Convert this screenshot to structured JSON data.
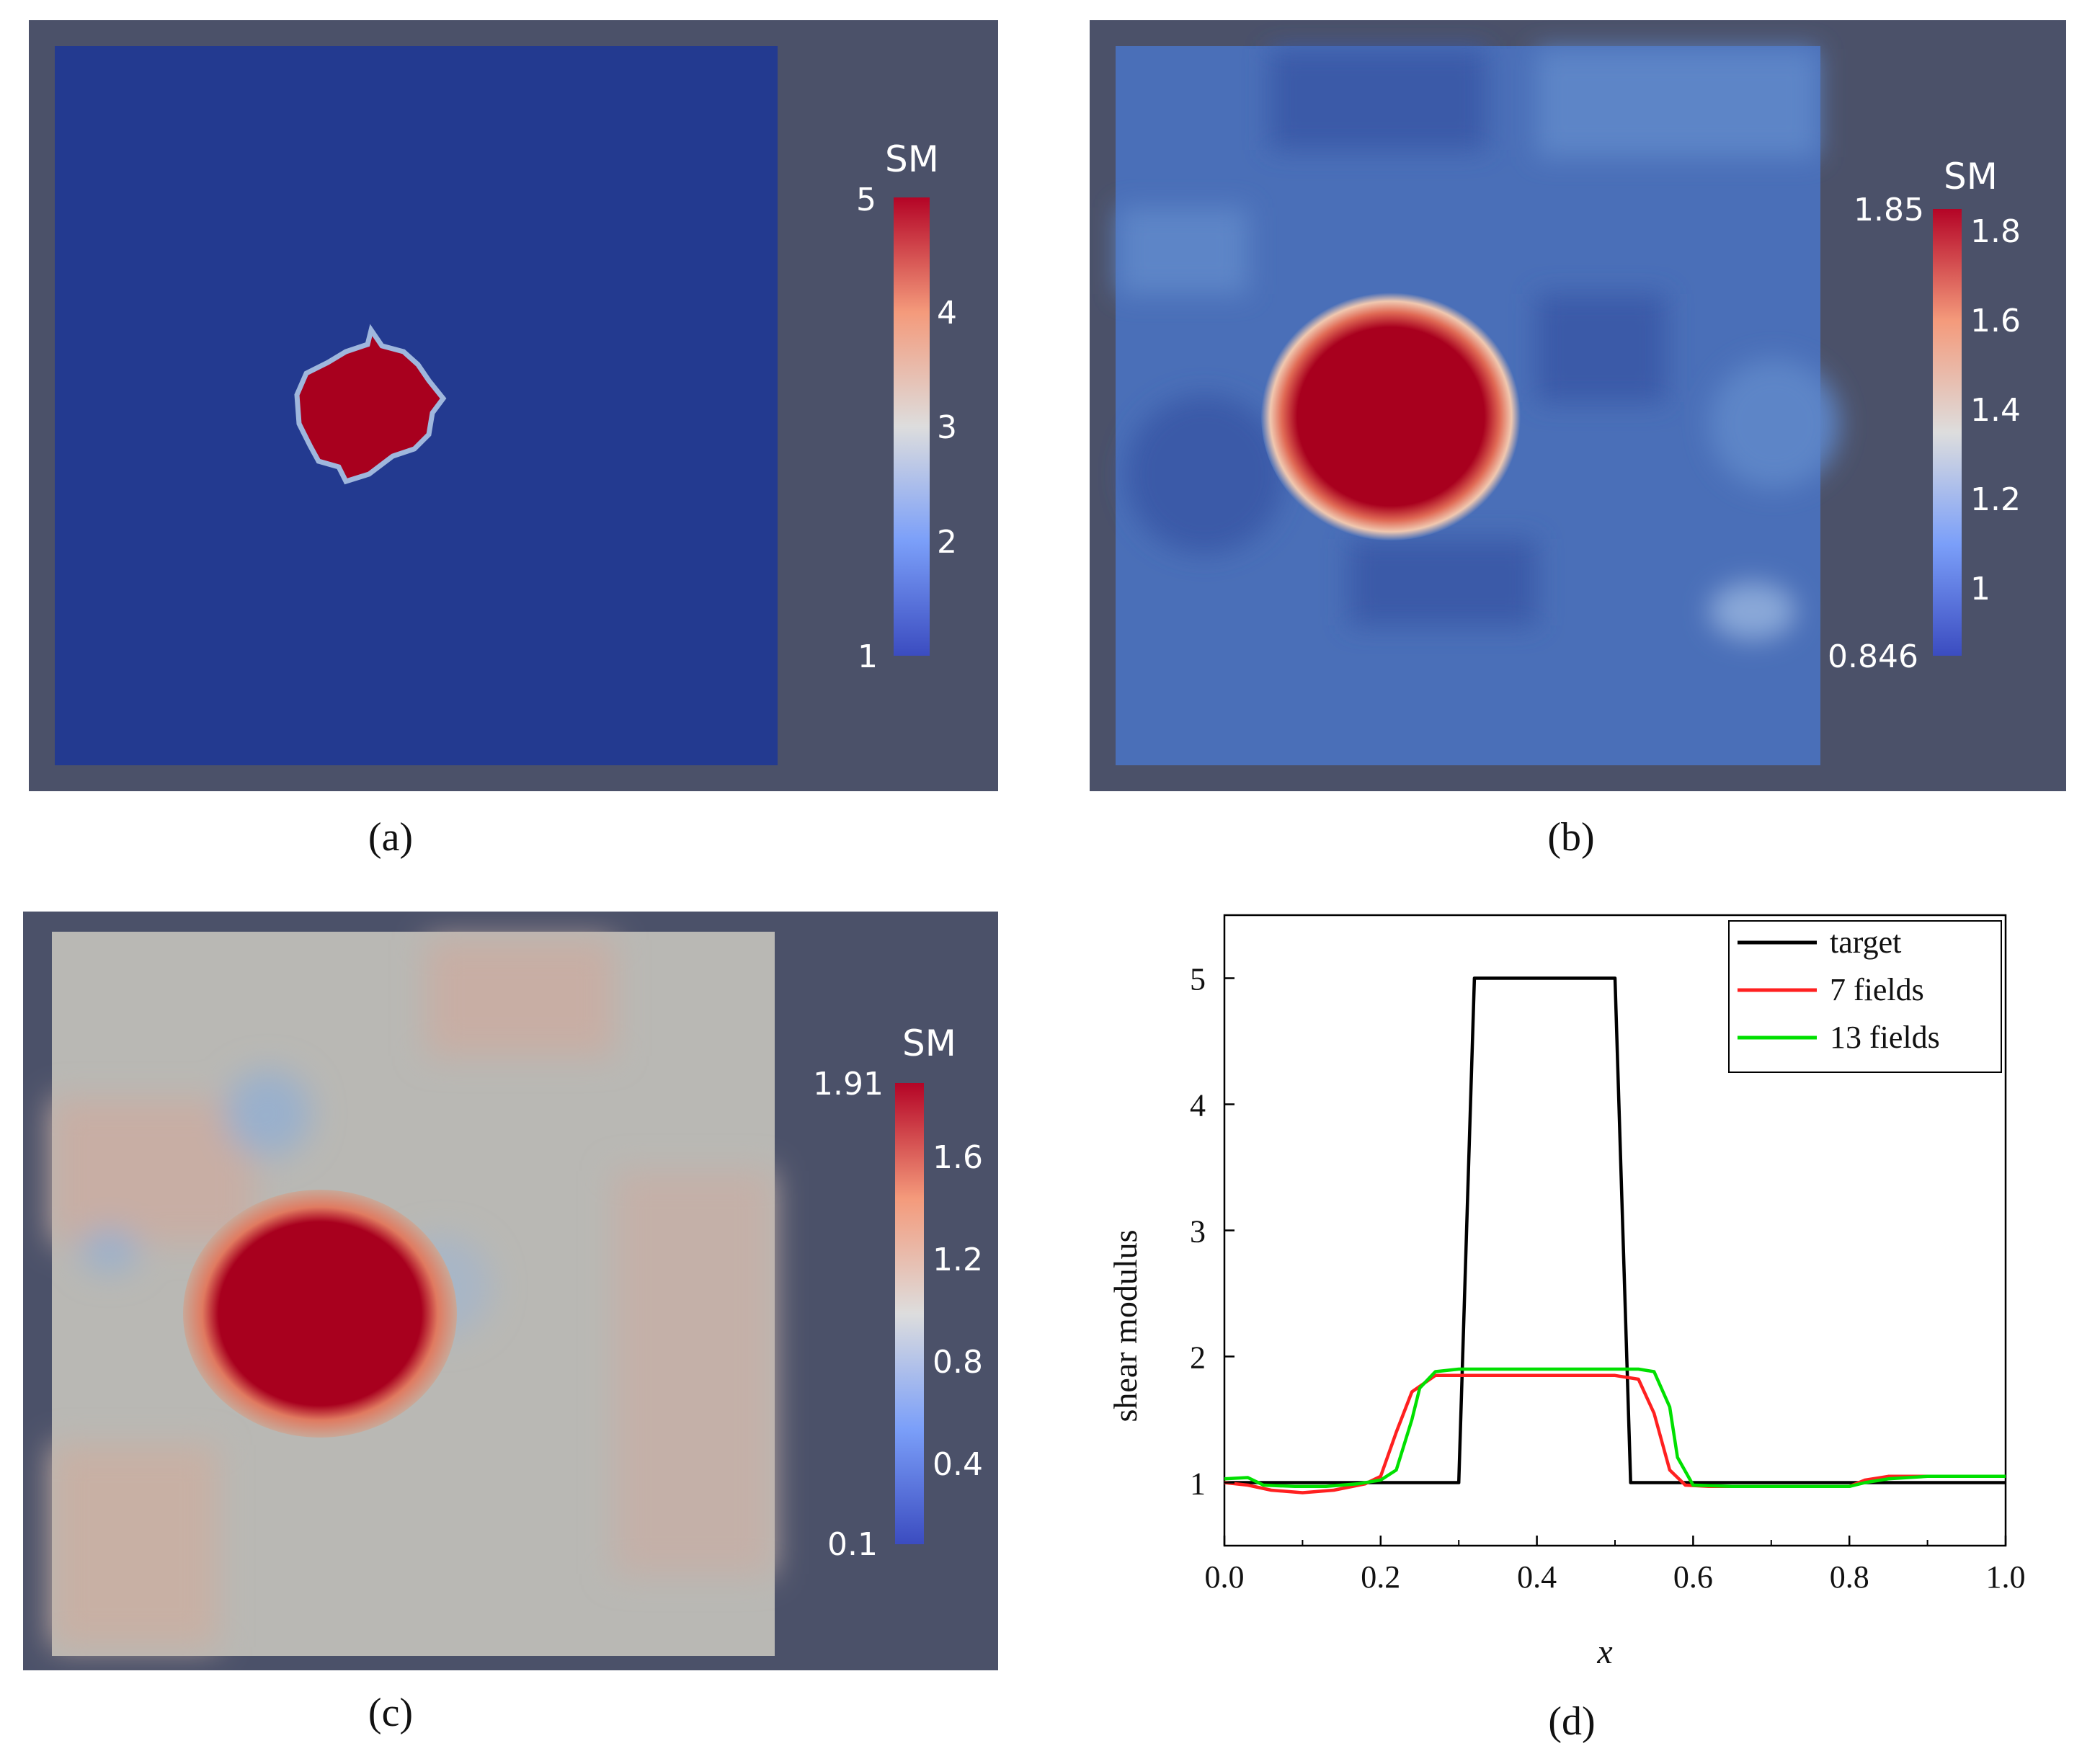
{
  "panels": [
    {
      "id": "a",
      "caption": "(a)",
      "colorbar": {
        "title": "SM",
        "min_label": "1",
        "max_label": "5",
        "ticks": [
          "4",
          "3",
          "2"
        ]
      }
    },
    {
      "id": "b",
      "caption": "(b)",
      "colorbar": {
        "title": "SM",
        "min_label": "0.846",
        "max_label": "1.85",
        "ticks": [
          "1.8",
          "1.6",
          "1.4",
          "1.2",
          "1"
        ]
      }
    },
    {
      "id": "c",
      "caption": "(c)",
      "colorbar": {
        "title": "SM",
        "min_label": "0.1",
        "max_label": "1.91",
        "ticks": [
          "1.6",
          "1.2",
          "0.8",
          "0.4"
        ]
      }
    }
  ],
  "panel_d_caption": "(d)",
  "colors": {
    "background_frame": "#4b5169",
    "field_low_blue": "#233a90",
    "field_mid_blue": "#4a6fb8",
    "inclusion_red": "#a8001e",
    "neutral_gray": "#b9b8b4",
    "target_line": "#000000",
    "fields7_line": "#ff2020",
    "fields13_line": "#00e000"
  },
  "chart_data": {
    "type": "line",
    "title": "",
    "xlabel": "x",
    "ylabel": "shear modulus",
    "xlim": [
      0.0,
      1.0
    ],
    "ylim": [
      0.5,
      5.5
    ],
    "x_ticks": [
      "0.0",
      "0.2",
      "0.4",
      "0.6",
      "0.8",
      "1.0"
    ],
    "y_ticks": [
      "1",
      "2",
      "3",
      "4",
      "5"
    ],
    "legend_position": "top-right",
    "series": [
      {
        "name": "target",
        "color": "#000000",
        "points": [
          [
            0.0,
            1.0
          ],
          [
            0.3,
            1.0
          ],
          [
            0.32,
            5.0
          ],
          [
            0.5,
            5.0
          ],
          [
            0.52,
            1.0
          ],
          [
            1.0,
            1.0
          ]
        ]
      },
      {
        "name": "7 fields",
        "color": "#ff2020",
        "points": [
          [
            0.0,
            1.0
          ],
          [
            0.03,
            0.98
          ],
          [
            0.06,
            0.94
          ],
          [
            0.1,
            0.92
          ],
          [
            0.14,
            0.94
          ],
          [
            0.18,
            0.99
          ],
          [
            0.2,
            1.05
          ],
          [
            0.22,
            1.4
          ],
          [
            0.24,
            1.72
          ],
          [
            0.27,
            1.85
          ],
          [
            0.3,
            1.85
          ],
          [
            0.4,
            1.85
          ],
          [
            0.5,
            1.85
          ],
          [
            0.53,
            1.82
          ],
          [
            0.55,
            1.55
          ],
          [
            0.57,
            1.1
          ],
          [
            0.59,
            0.98
          ],
          [
            0.62,
            0.97
          ],
          [
            0.7,
            0.97
          ],
          [
            0.8,
            0.97
          ],
          [
            0.82,
            1.02
          ],
          [
            0.85,
            1.05
          ],
          [
            0.9,
            1.05
          ],
          [
            1.0,
            1.05
          ]
        ]
      },
      {
        "name": "13 fields",
        "color": "#00e000",
        "points": [
          [
            0.0,
            1.03
          ],
          [
            0.03,
            1.04
          ],
          [
            0.05,
            0.98
          ],
          [
            0.09,
            0.97
          ],
          [
            0.13,
            0.97
          ],
          [
            0.17,
            0.99
          ],
          [
            0.2,
            1.02
          ],
          [
            0.22,
            1.1
          ],
          [
            0.24,
            1.5
          ],
          [
            0.25,
            1.75
          ],
          [
            0.27,
            1.88
          ],
          [
            0.3,
            1.9
          ],
          [
            0.4,
            1.9
          ],
          [
            0.5,
            1.9
          ],
          [
            0.53,
            1.9
          ],
          [
            0.55,
            1.88
          ],
          [
            0.57,
            1.6
          ],
          [
            0.58,
            1.2
          ],
          [
            0.6,
            0.98
          ],
          [
            0.65,
            0.97
          ],
          [
            0.8,
            0.97
          ],
          [
            0.82,
            1.0
          ],
          [
            0.85,
            1.03
          ],
          [
            0.9,
            1.05
          ],
          [
            1.0,
            1.05
          ]
        ]
      }
    ]
  }
}
